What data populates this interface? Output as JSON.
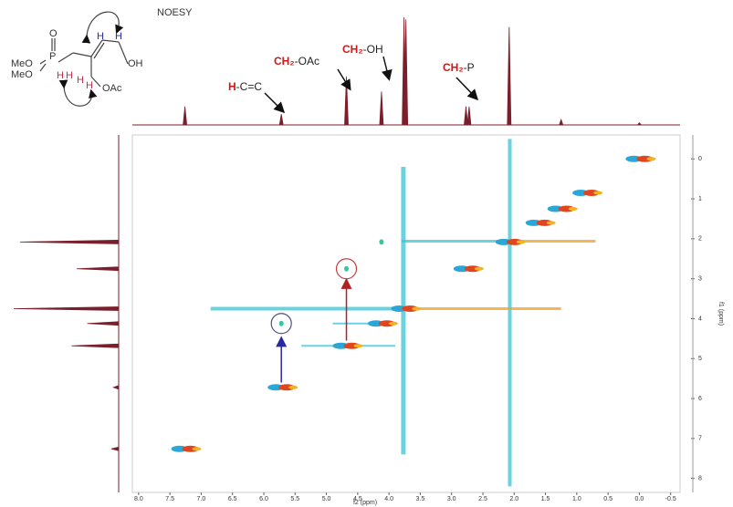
{
  "chart_data": {
    "type": "noesy",
    "title": "NOESY",
    "xlabel": "f2 (ppm)",
    "ylabel": "f1 (ppm)",
    "xlim": [
      8.1,
      -0.65
    ],
    "ylim": [
      -0.6,
      8.35
    ],
    "xticks": [
      {
        "value": 8,
        "label": "8.0"
      },
      7.5,
      {
        "value": 7,
        "label": "7.0"
      },
      6.5,
      {
        "value": 6,
        "label": "6.0"
      },
      5.5,
      {
        "value": 5,
        "label": "5.0"
      },
      4.5,
      {
        "value": 4,
        "label": "4.0"
      },
      3.5,
      {
        "value": 3,
        "label": "3.0"
      },
      2.5,
      {
        "value": 2,
        "label": "2.0"
      },
      1.5,
      {
        "value": 1,
        "label": "1.0"
      },
      0.5,
      {
        "value": 0,
        "label": "0.0"
      },
      -0.5
    ],
    "yticks": [
      0,
      1,
      2,
      3,
      4,
      5,
      6,
      7,
      8
    ],
    "spectrum_color": "#7a1f2b",
    "f2_spectrum": {
      "shifts": [
        7.26,
        5.72,
        4.68,
        4.12,
        3.76,
        3.73,
        2.77,
        2.72,
        2.08,
        1.25,
        0.0
      ],
      "heights": [
        0.17,
        0.1,
        0.45,
        0.31,
        1.0,
        0.98,
        0.17,
        0.17,
        0.91,
        0.05,
        0.02
      ]
    },
    "f1_spectrum": {
      "shifts": [
        7.26,
        5.72,
        4.68,
        4.12,
        3.75,
        2.75,
        2.08
      ],
      "heights": [
        0.07,
        0.05,
        0.45,
        0.3,
        1.0,
        0.4,
        0.94
      ]
    },
    "diagonal": [
      7.26,
      5.72,
      4.68,
      4.12,
      3.75,
      2.75,
      2.08,
      1.6,
      1.25,
      0.85,
      0.0
    ],
    "cross_peaks": {
      "x": [
        4.68,
        5.72,
        4.12
      ],
      "y": [
        2.75,
        4.12,
        2.08
      ]
    },
    "annotations": [
      {
        "highlight": "H",
        "text": "-C=C"
      },
      {
        "highlight": "CH₂",
        "text": "-OAc"
      },
      {
        "highlight": "CH₂",
        "text": "-OH"
      },
      {
        "highlight": "CH₂",
        "text": "-P"
      }
    ],
    "structure": {
      "atoms": [
        "O",
        "P",
        "MeO",
        "MeO",
        "H",
        "H",
        "H",
        "H",
        "H",
        "H",
        "OH",
        "OAc"
      ]
    }
  }
}
